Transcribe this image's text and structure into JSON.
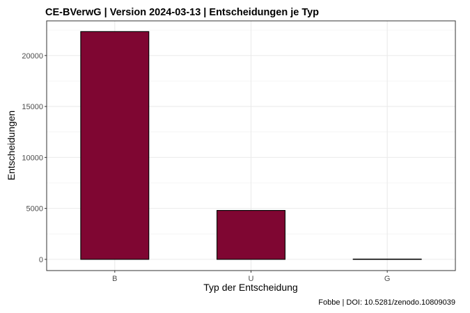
{
  "chart_data": {
    "type": "bar",
    "title": "CE-BVerwG | Version 2024-03-13 | Entscheidungen je Typ",
    "xlabel": "Typ der Entscheidung",
    "ylabel": "Entscheidungen",
    "caption": "Fobbe | DOI: 10.5281/zenodo.10809039",
    "categories": [
      "B",
      "U",
      "G"
    ],
    "values": [
      22350,
      4800,
      30
    ],
    "ylim": [
      -1100,
      23400
    ],
    "yticks": [
      0,
      5000,
      10000,
      15000,
      20000
    ],
    "ytick_labels": [
      "0",
      "5000",
      "10000",
      "15000",
      "20000"
    ],
    "grid": true,
    "bar_color": "#7f0632",
    "bar_edge_color": "#000000"
  }
}
